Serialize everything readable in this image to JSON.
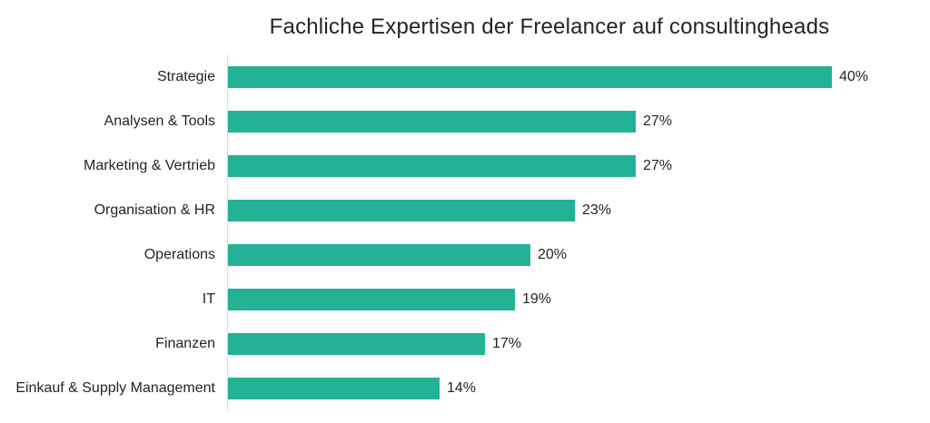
{
  "chart_data": {
    "type": "bar",
    "orientation": "horizontal",
    "title": "Fachliche Expertisen der Freelancer auf consultingheads",
    "categories": [
      "Strategie",
      "Analysen & Tools",
      "Marketing & Vertrieb",
      "Organisation & HR",
      "Operations",
      "IT",
      "Finanzen",
      "Einkauf & Supply Management"
    ],
    "values": [
      40,
      27,
      27,
      23,
      20,
      19,
      17,
      14
    ],
    "value_labels": [
      "40%",
      "27%",
      "27%",
      "23%",
      "20%",
      "19%",
      "17%",
      "14%"
    ],
    "xlabel": "",
    "ylabel": "",
    "xlim": [
      0,
      40
    ],
    "grid": false,
    "legend": false,
    "bar_color": "#23b296",
    "text_color": "#252423",
    "axis_line_color": "#dcdcdc"
  }
}
